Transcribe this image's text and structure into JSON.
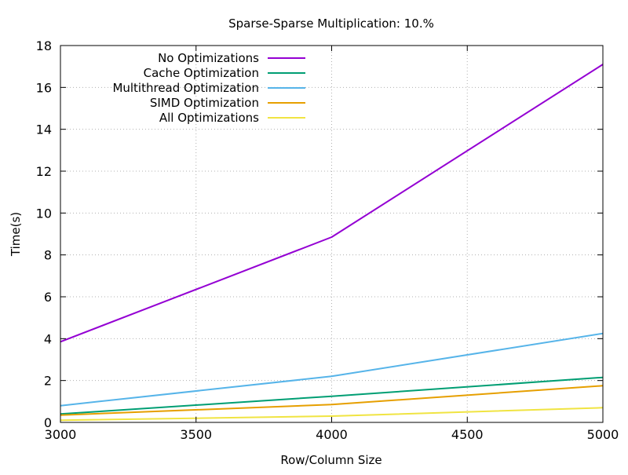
{
  "chart_data": {
    "type": "line",
    "title": "Sparse-Sparse Multiplication: 10.%",
    "xlabel": "Row/Column Size",
    "ylabel": "Time(s)",
    "xlim": [
      3000,
      5000
    ],
    "ylim": [
      0,
      18
    ],
    "x_ticks": [
      "3000",
      "3500",
      "4000",
      "4500",
      "5000"
    ],
    "y_ticks": [
      "0",
      "2",
      "4",
      "6",
      "8",
      "10",
      "12",
      "14",
      "16",
      "18"
    ],
    "grid": true,
    "legend_position": "top-left",
    "x": [
      3000,
      4000,
      5000
    ],
    "series": [
      {
        "name": "No Optimizations",
        "color": "#9400d3",
        "values": [
          3.85,
          8.85,
          17.1
        ]
      },
      {
        "name": "Cache Optimization",
        "color": "#009e73",
        "values": [
          0.4,
          1.25,
          2.15
        ]
      },
      {
        "name": "Multithread Optimization",
        "color": "#56b4e9",
        "values": [
          0.8,
          2.2,
          4.25
        ]
      },
      {
        "name": "SIMD Optimization",
        "color": "#e69f00",
        "values": [
          0.35,
          0.85,
          1.75
        ]
      },
      {
        "name": "All Optimizations",
        "color": "#f0e442",
        "values": [
          0.1,
          0.3,
          0.7
        ]
      }
    ]
  }
}
